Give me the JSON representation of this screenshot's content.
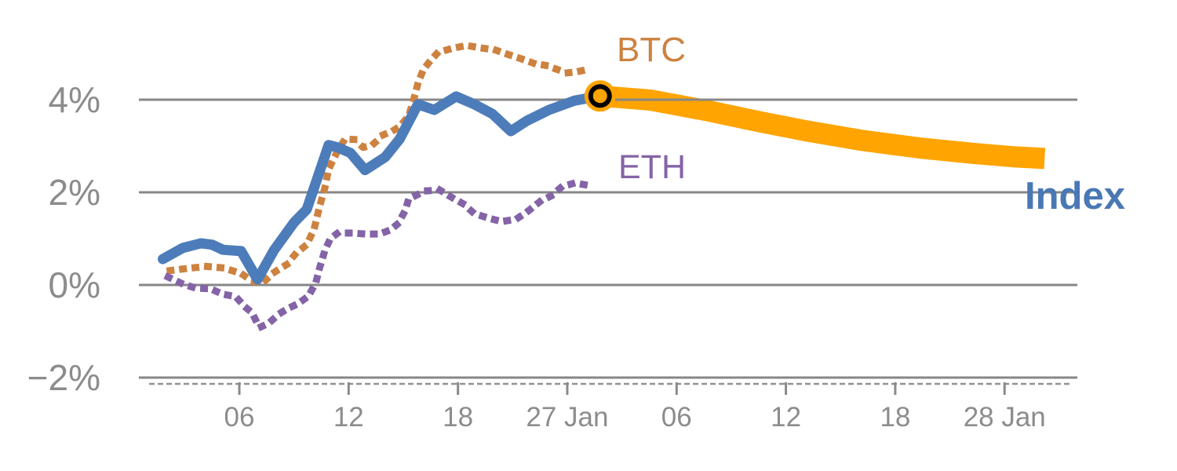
{
  "chart_data": {
    "type": "line",
    "title": "",
    "xlabel": "",
    "ylabel": "",
    "x_unit_days_per_tick": 6,
    "x_ticks": {
      "values": [
        6,
        12,
        18,
        24,
        30,
        36,
        42,
        48
      ],
      "labels": [
        "06",
        "12",
        "18",
        "27 Jan",
        "06",
        "12",
        "18",
        "28 Jan"
      ]
    },
    "y_ticks": {
      "values": [
        4,
        2,
        0,
        -2
      ],
      "labels": [
        "4%",
        "2%",
        "0%",
        "−2%"
      ]
    },
    "ylim": [
      -4,
      6.1
    ],
    "xlim": [
      0.5,
      52
    ],
    "grid": "horizontal",
    "legend_position": "inline-annotations",
    "colors": {
      "index": "#4d7cba",
      "btc": "#cd8240",
      "eth": "#8463a7",
      "forecast_band": "#ffa400",
      "marker_ring": "#000000",
      "gridline": "#878787",
      "axis_text": "#8c8c8c"
    },
    "series": [
      {
        "name": "BTC",
        "style": "dotted",
        "color": "#cd8240",
        "points": [
          [
            2.2,
            0.31
          ],
          [
            3.2,
            0.36
          ],
          [
            4.2,
            0.4
          ],
          [
            5.1,
            0.37
          ],
          [
            6.1,
            0.25
          ],
          [
            6.7,
            0.08
          ],
          [
            7.3,
            0.05
          ],
          [
            7.9,
            0.27
          ],
          [
            8.6,
            0.44
          ],
          [
            9.1,
            0.68
          ],
          [
            9.7,
            0.87
          ],
          [
            10.1,
            1.2
          ],
          [
            10.4,
            1.69
          ],
          [
            10.7,
            2.1
          ],
          [
            10.9,
            2.5
          ],
          [
            11.4,
            2.9
          ],
          [
            11.8,
            3.15
          ],
          [
            12.3,
            3.14
          ],
          [
            12.8,
            2.97
          ],
          [
            13.3,
            3.02
          ],
          [
            13.9,
            3.24
          ],
          [
            14.4,
            3.32
          ],
          [
            14.8,
            3.42
          ],
          [
            15.3,
            3.65
          ],
          [
            15.6,
            4.05
          ],
          [
            15.8,
            4.35
          ],
          [
            16.1,
            4.65
          ],
          [
            16.5,
            4.85
          ],
          [
            16.9,
            5.02
          ],
          [
            17.8,
            5.12
          ],
          [
            18.5,
            5.17
          ],
          [
            19.2,
            5.12
          ],
          [
            20.0,
            5.08
          ],
          [
            20.8,
            4.97
          ],
          [
            21.5,
            4.88
          ],
          [
            22.2,
            4.78
          ],
          [
            22.8,
            4.74
          ],
          [
            23.4,
            4.66
          ],
          [
            24.0,
            4.58
          ],
          [
            24.5,
            4.6
          ],
          [
            25.2,
            4.66
          ]
        ]
      },
      {
        "name": "ETH",
        "style": "dotted",
        "color": "#8463a7",
        "points": [
          [
            2.1,
            0.17
          ],
          [
            2.9,
            0.02
          ],
          [
            3.6,
            -0.07
          ],
          [
            4.4,
            -0.08
          ],
          [
            5.1,
            -0.2
          ],
          [
            5.8,
            -0.25
          ],
          [
            6.3,
            -0.47
          ],
          [
            6.7,
            -0.6
          ],
          [
            7.1,
            -0.92
          ],
          [
            7.6,
            -0.83
          ],
          [
            8.2,
            -0.62
          ],
          [
            8.7,
            -0.5
          ],
          [
            9.2,
            -0.41
          ],
          [
            9.8,
            -0.24
          ],
          [
            10.2,
            0.05
          ],
          [
            10.4,
            0.36
          ],
          [
            10.7,
            0.75
          ],
          [
            11.0,
            1.0
          ],
          [
            11.4,
            1.12
          ],
          [
            12.2,
            1.12
          ],
          [
            12.9,
            1.1
          ],
          [
            13.7,
            1.1
          ],
          [
            14.3,
            1.19
          ],
          [
            14.7,
            1.32
          ],
          [
            15.1,
            1.6
          ],
          [
            15.3,
            1.86
          ],
          [
            16.2,
            2.03
          ],
          [
            17.0,
            2.05
          ],
          [
            17.7,
            1.88
          ],
          [
            18.3,
            1.75
          ],
          [
            18.9,
            1.54
          ],
          [
            19.7,
            1.44
          ],
          [
            20.4,
            1.37
          ],
          [
            21.2,
            1.42
          ],
          [
            21.8,
            1.58
          ],
          [
            22.5,
            1.8
          ],
          [
            23.1,
            1.92
          ],
          [
            23.7,
            2.12
          ],
          [
            24.4,
            2.2
          ],
          [
            25.3,
            2.14
          ]
        ]
      },
      {
        "name": "Index",
        "style": "solid",
        "color": "#4d7cba",
        "points": [
          [
            1.8,
            0.56
          ],
          [
            2.9,
            0.8
          ],
          [
            3.9,
            0.9
          ],
          [
            4.5,
            0.87
          ],
          [
            5.1,
            0.76
          ],
          [
            6.1,
            0.73
          ],
          [
            7.0,
            0.12
          ],
          [
            7.9,
            0.75
          ],
          [
            9.0,
            1.35
          ],
          [
            9.7,
            1.63
          ],
          [
            10.9,
            3.02
          ],
          [
            11.4,
            2.97
          ],
          [
            12.1,
            2.85
          ],
          [
            12.9,
            2.48
          ],
          [
            14.0,
            2.76
          ],
          [
            14.8,
            3.15
          ],
          [
            15.8,
            3.9
          ],
          [
            16.7,
            3.78
          ],
          [
            17.9,
            4.07
          ],
          [
            18.9,
            3.9
          ],
          [
            19.9,
            3.69
          ],
          [
            20.9,
            3.32
          ],
          [
            21.8,
            3.55
          ],
          [
            23.0,
            3.78
          ],
          [
            24.4,
            3.98
          ],
          [
            25.8,
            4.08
          ]
        ]
      },
      {
        "name": "Index forecast",
        "style": "band",
        "color": "#ffa400",
        "points": [
          [
            25.8,
            4.08
          ],
          [
            28.6,
            3.99
          ],
          [
            31.6,
            3.77
          ],
          [
            34.6,
            3.52
          ],
          [
            37.2,
            3.32
          ],
          [
            40.2,
            3.12
          ],
          [
            43.3,
            2.96
          ],
          [
            46.3,
            2.84
          ],
          [
            48.4,
            2.77
          ],
          [
            50.2,
            2.73
          ]
        ]
      }
    ],
    "marker": {
      "x": 25.8,
      "y": 4.08,
      "description": "forecast start point: orange dot with black ring"
    },
    "annotations": [
      {
        "text": "BTC",
        "color": "#cd8240"
      },
      {
        "text": "ETH",
        "color": "#8463a7"
      },
      {
        "text": "Index",
        "color": "#4a78b5"
      }
    ]
  }
}
